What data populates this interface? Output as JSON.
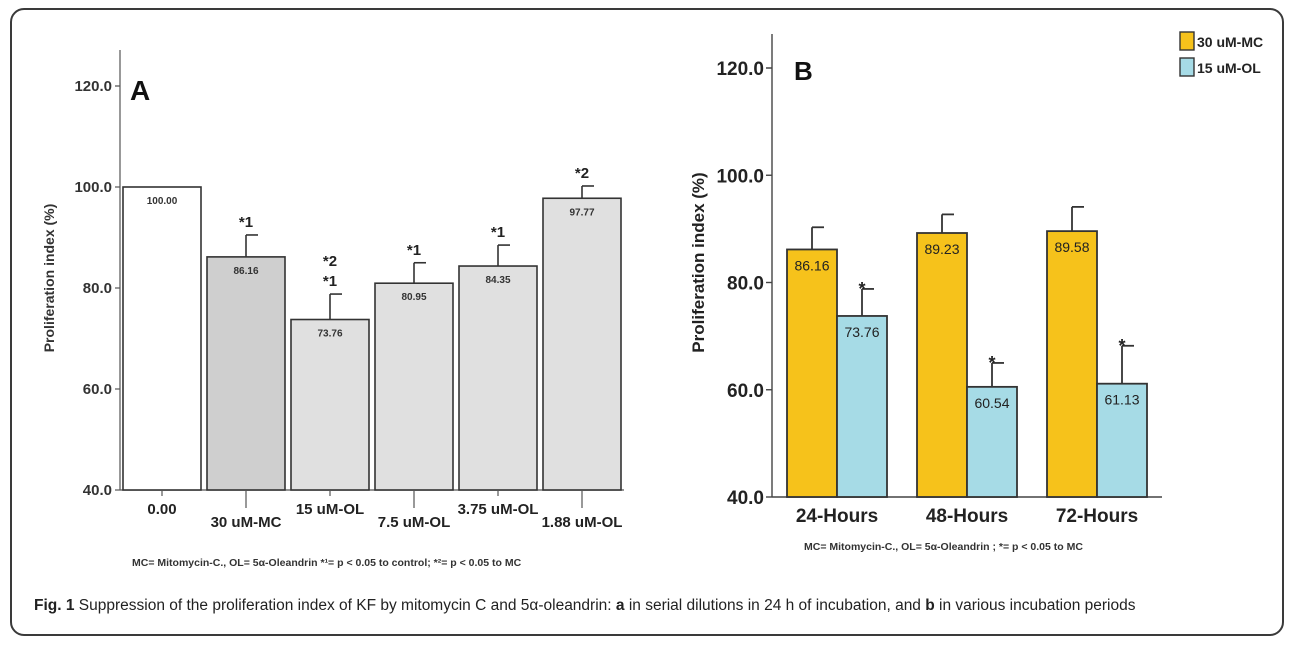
{
  "chart_data": [
    {
      "type": "bar",
      "panel_label": "A",
      "ylabel": "Proliferation index (%)",
      "ylim": [
        40,
        120
      ],
      "yticks": [
        "40.0",
        "60.0",
        "80.0",
        "100.0",
        "120.0"
      ],
      "categories": [
        "0.00",
        "30 uM-MC",
        "15 uM-OL",
        "7.5 uM-OL",
        "3.75 uM-OL",
        "1.88 uM-OL"
      ],
      "values": [
        100.0,
        86.16,
        73.76,
        80.95,
        84.35,
        97.77
      ],
      "value_labels": [
        "100.00",
        "86.16",
        "73.76",
        "80.95",
        "84.35",
        "97.77"
      ],
      "error_upper": [
        null,
        90.5,
        78.8,
        85.0,
        88.5,
        100.2
      ],
      "significance": [
        [],
        [
          "*1"
        ],
        [
          "*2",
          "*1"
        ],
        [
          "*1"
        ],
        [
          "*1"
        ],
        [
          "*2"
        ]
      ],
      "bar_colors": [
        "#ffffff",
        "#cfcfcf",
        "#e0e0e0",
        "#e0e0e0",
        "#e0e0e0",
        "#e0e0e0"
      ],
      "footnote": "MC= Mitomycin-C., OL= 5α-Oleandrin  *¹= p < 0.05 to control; *²= p < 0.05 to MC"
    },
    {
      "type": "bar",
      "panel_label": "B",
      "ylabel": "Proliferation index (%)",
      "ylim": [
        40,
        120
      ],
      "yticks": [
        "40.0",
        "60.0",
        "80.0",
        "100.0",
        "120.0"
      ],
      "categories": [
        "24-Hours",
        "48-Hours",
        "72-Hours"
      ],
      "series": [
        {
          "name": "30 uM-MC",
          "color": "#f6c21b",
          "values": [
            86.16,
            89.23,
            89.58
          ],
          "value_labels": [
            "86.16",
            "89.23",
            "89.58"
          ],
          "error_upper": [
            90.3,
            92.7,
            94.1
          ],
          "significance": [
            "",
            "",
            ""
          ]
        },
        {
          "name": "15 uM-OL",
          "color": "#a6dbe6",
          "values": [
            73.76,
            60.54,
            61.13
          ],
          "value_labels": [
            "73.76",
            "60.54",
            "61.13"
          ],
          "error_upper": [
            78.8,
            65.0,
            68.2
          ],
          "significance": [
            "*",
            "*",
            "*"
          ]
        }
      ],
      "legend_position": "top-right",
      "footnote": "MC= Mitomycin-C., OL= 5α-Oleandrin ; *= p < 0.05 to MC"
    }
  ],
  "caption": {
    "prefix": "Fig. 1",
    "text_1": " Suppression of the proliferation index of KF by mitomycin C and 5α-oleandrin: ",
    "a": "a",
    "text_2": " in serial dilutions in 24 h of incubation, and ",
    "b": "b",
    "text_3": " in various incubation periods"
  }
}
